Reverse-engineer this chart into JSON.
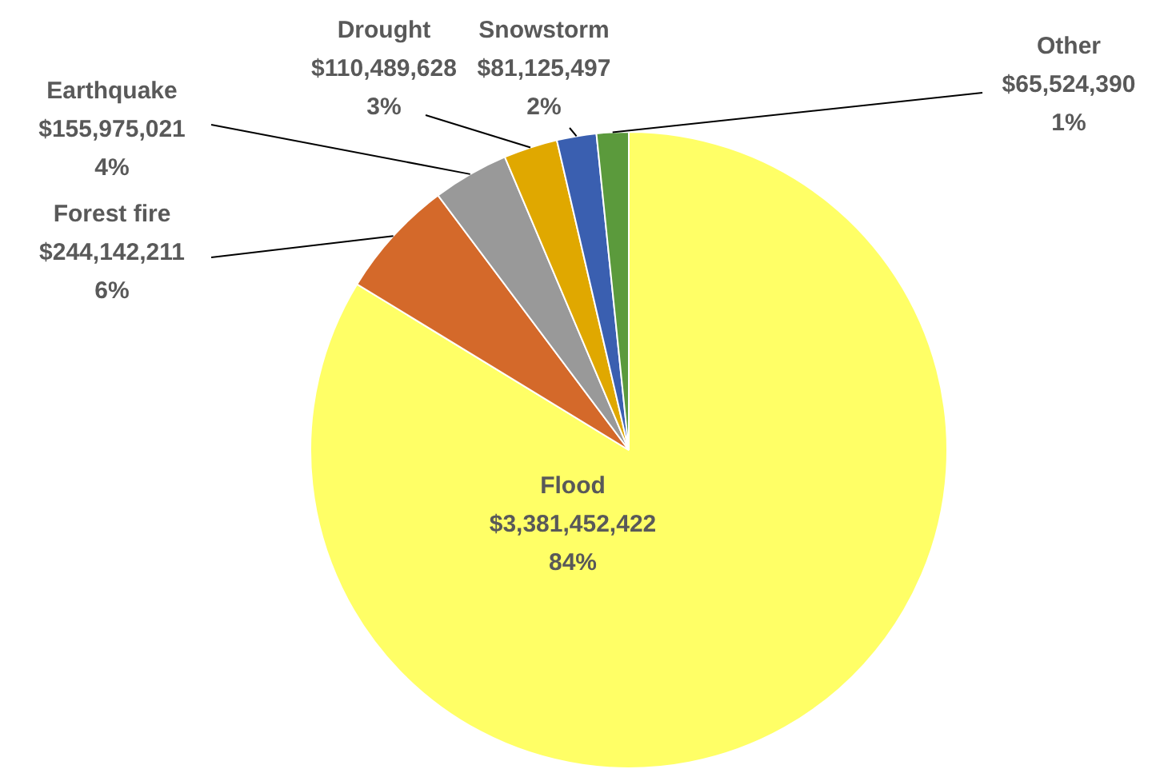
{
  "chart_data": {
    "type": "pie",
    "categories": [
      "Flood",
      "Forest fire",
      "Earthquake",
      "Drought",
      "Snowstorm",
      "Other"
    ],
    "values": [
      3381452422,
      244142211,
      155975021,
      110489628,
      81125497,
      65524390
    ],
    "colors": [
      "#ffff66",
      "#d4692a",
      "#999999",
      "#e0a800",
      "#3a5fb0",
      "#5b9a3c"
    ],
    "value_labels": [
      "$3,381,452,422\n84%",
      "$244,142,211\n6%",
      "$155,975,021\n4%",
      "$110,489,628\n3%",
      "$81,125,497\n2%",
      "$65,524,390\n1%"
    ],
    "legend": false
  }
}
